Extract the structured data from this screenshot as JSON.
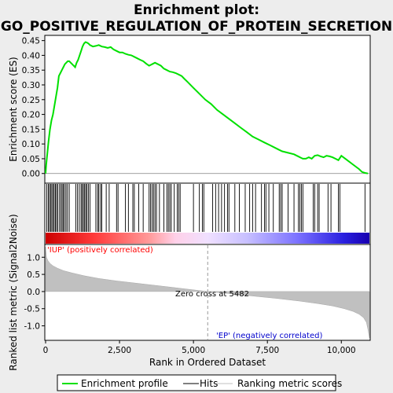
{
  "chart_data": {
    "type": "line",
    "title_line1": "Enrichment plot:",
    "title_line2": "GO_POSITIVE_REGULATION_OF_PROTEIN_SECRETION",
    "es_panel": {
      "ylabel": "Enrichment score (ES)",
      "ylim": [
        -0.03,
        0.465
      ],
      "yticks": [
        "0.00",
        "0.05",
        "0.10",
        "0.15",
        "0.20",
        "0.25",
        "0.30",
        "0.35",
        "0.40",
        "0.45"
      ],
      "ytick_values": [
        0,
        0.05,
        0.1,
        0.15,
        0.2,
        0.25,
        0.3,
        0.35,
        0.4,
        0.45
      ],
      "series_name": "Enrichment profile",
      "line_color": "#00e000",
      "x": [
        0,
        20,
        60,
        100,
        150,
        200,
        250,
        300,
        350,
        400,
        450,
        500,
        550,
        600,
        650,
        700,
        750,
        800,
        900,
        1000,
        1050,
        1100,
        1150,
        1200,
        1250,
        1300,
        1350,
        1400,
        1450,
        1500,
        1600,
        1700,
        1800,
        1900,
        2000,
        2100,
        2200,
        2300,
        2400,
        2500,
        2600,
        2700,
        2800,
        2900,
        3000,
        3100,
        3200,
        3300,
        3400,
        3500,
        3600,
        3700,
        3800,
        3900,
        4000,
        4100,
        4200,
        4300,
        4400,
        4500,
        4600,
        4700,
        4800,
        5000,
        5200,
        5400,
        5600,
        5800,
        6000,
        6200,
        6400,
        6600,
        6800,
        7000,
        7200,
        7400,
        7600,
        7800,
        7900,
        8000,
        8200,
        8400,
        8500,
        8600,
        8700,
        8800,
        8900,
        9000,
        9100,
        9200,
        9300,
        9400,
        9500,
        9600,
        9700,
        9800,
        9900,
        10000,
        10200,
        10400,
        10600,
        10700,
        10800,
        10900
      ],
      "y": [
        0.0,
        0.03,
        0.07,
        0.11,
        0.15,
        0.18,
        0.2,
        0.23,
        0.26,
        0.29,
        0.33,
        0.34,
        0.35,
        0.36,
        0.37,
        0.375,
        0.38,
        0.38,
        0.37,
        0.36,
        0.375,
        0.385,
        0.4,
        0.415,
        0.43,
        0.44,
        0.445,
        0.443,
        0.44,
        0.435,
        0.43,
        0.432,
        0.435,
        0.43,
        0.428,
        0.425,
        0.428,
        0.42,
        0.415,
        0.41,
        0.41,
        0.405,
        0.402,
        0.4,
        0.395,
        0.39,
        0.385,
        0.38,
        0.372,
        0.365,
        0.37,
        0.375,
        0.37,
        0.365,
        0.355,
        0.35,
        0.345,
        0.343,
        0.34,
        0.335,
        0.33,
        0.32,
        0.31,
        0.29,
        0.27,
        0.25,
        0.235,
        0.215,
        0.2,
        0.185,
        0.17,
        0.155,
        0.14,
        0.125,
        0.115,
        0.105,
        0.095,
        0.085,
        0.08,
        0.075,
        0.07,
        0.065,
        0.06,
        0.055,
        0.05,
        0.05,
        0.055,
        0.05,
        0.06,
        0.062,
        0.058,
        0.055,
        0.06,
        0.058,
        0.055,
        0.05,
        0.045,
        0.06,
        0.045,
        0.03,
        0.015,
        0.005,
        0.002,
        0.0
      ]
    },
    "hits_panel": {
      "series_name": "Hits",
      "hit_positions": [
        40,
        90,
        130,
        170,
        210,
        250,
        290,
        330,
        370,
        410,
        470,
        520,
        560,
        600,
        640,
        690,
        740,
        800,
        1020,
        1080,
        1140,
        1200,
        1240,
        1280,
        1320,
        1360,
        1400,
        1450,
        1500,
        1700,
        1760,
        1800,
        1860,
        1900,
        2050,
        2150,
        2400,
        2450,
        2700,
        2800,
        2950,
        3000,
        3150,
        3300,
        3500,
        3550,
        3600,
        3650,
        3700,
        3750,
        3850,
        4000,
        4100,
        4150,
        4200,
        4250,
        4350,
        4450,
        4500,
        4550,
        5000,
        5200,
        5300,
        5350,
        5650,
        5750,
        5850,
        5950,
        6050,
        6150,
        6200,
        6400,
        6550,
        6750,
        6900,
        7000,
        7100,
        7300,
        7400,
        7450,
        7550,
        7700,
        7900,
        7950,
        8000,
        8200,
        8400,
        8550,
        8600,
        8650,
        8700,
        9050,
        9100,
        9200,
        9250,
        9550,
        9650,
        9900,
        9950,
        10800
      ]
    },
    "ranked_panel": {
      "ylabel": "Ranked list metric (Signal2Noise)",
      "xlabel": "Rank in Ordered Dataset",
      "ylim": [
        -1.4,
        1.35
      ],
      "yticks": [
        "1.0",
        "0.5",
        "0.0",
        "-0.5",
        "-1.0"
      ],
      "ytick_values": [
        1.0,
        0.5,
        0.0,
        -0.5,
        -1.0
      ],
      "xticks": [
        "0",
        "2,500",
        "5,000",
        "7,500",
        "10,000"
      ],
      "xtick_values": [
        0,
        2500,
        5000,
        7500,
        10000
      ],
      "xlim": [
        0,
        10950
      ],
      "series_name": "Ranking metric scores",
      "x": [
        0,
        30,
        80,
        150,
        250,
        400,
        600,
        900,
        1300,
        1800,
        2400,
        3000,
        3600,
        4200,
        4800,
        5482,
        6200,
        7000,
        7800,
        8600,
        9200,
        9700,
        10100,
        10400,
        10600,
        10750,
        10850,
        10900,
        10950
      ],
      "y": [
        1.3,
        1.0,
        0.9,
        0.82,
        0.75,
        0.68,
        0.61,
        0.54,
        0.46,
        0.38,
        0.31,
        0.25,
        0.19,
        0.13,
        0.07,
        0.0,
        -0.06,
        -0.13,
        -0.2,
        -0.28,
        -0.35,
        -0.42,
        -0.5,
        -0.58,
        -0.66,
        -0.76,
        -0.9,
        -1.1,
        -1.35
      ],
      "zero_cross_label": "Zero cross at 5482",
      "zero_cross": 5482,
      "pos_label": "'IUP' (positively correlated)",
      "neg_label": "'EP' (negatively correlated)",
      "pos_color": "#ff0000",
      "neg_color": "#0000cc"
    },
    "legend": [
      "Enrichment profile",
      "Hits",
      "Ranking metric scores"
    ],
    "grid": false
  }
}
